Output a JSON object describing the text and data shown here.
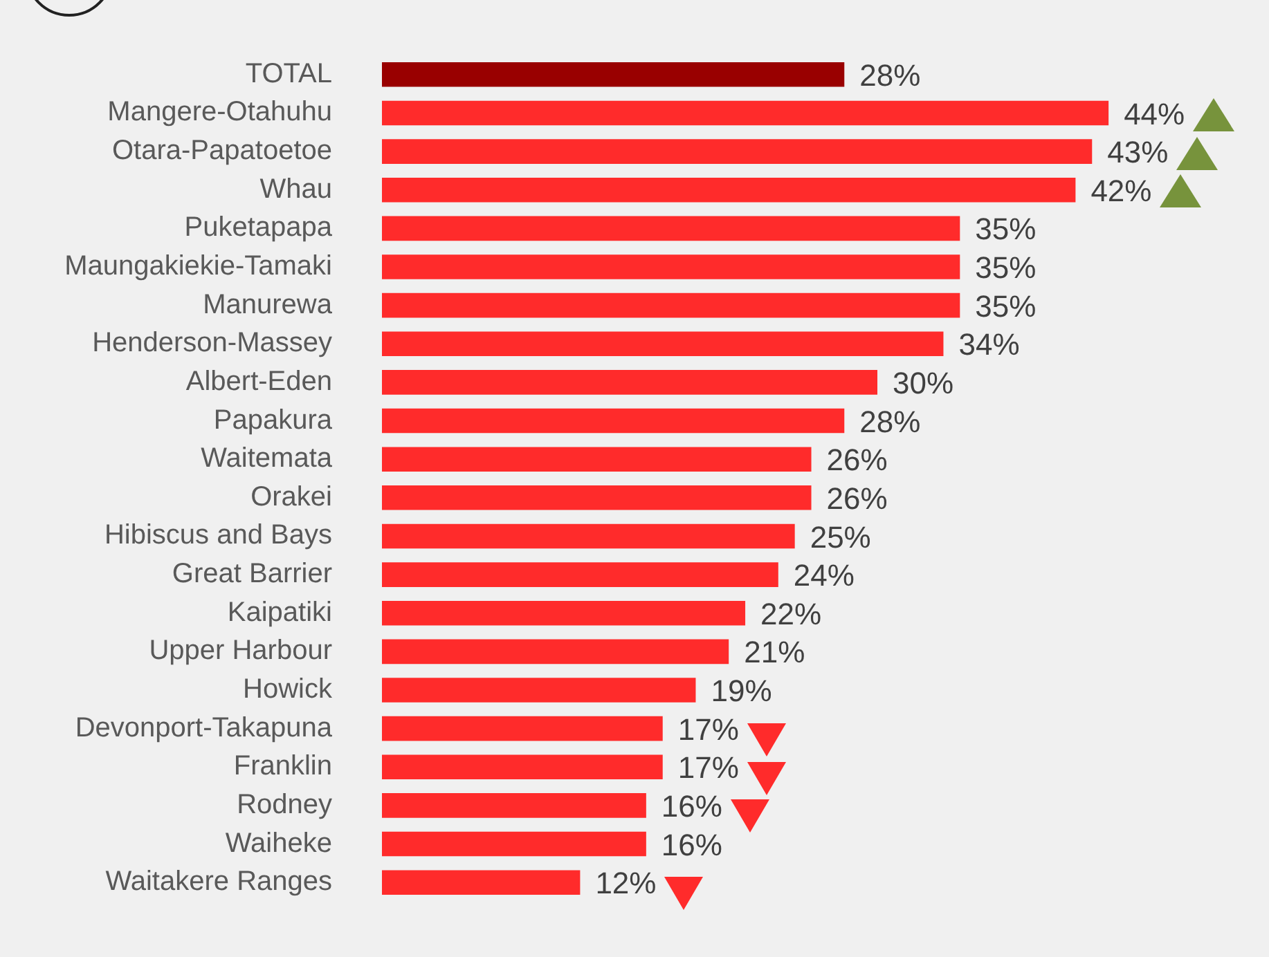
{
  "chart_data": {
    "type": "bar",
    "orientation": "horizontal",
    "categories": [
      "TOTAL",
      "Mangere-Otahuhu",
      "Otara-Papatoetoe",
      "Whau",
      "Puketapapa",
      "Maungakiekie-Tamaki",
      "Manurewa",
      "Henderson-Massey",
      "Albert-Eden",
      "Papakura",
      "Waitemata",
      "Orakei",
      "Hibiscus and Bays",
      "Great Barrier",
      "Kaipatiki",
      "Upper Harbour",
      "Howick",
      "Devonport-Takapuna",
      "Franklin",
      "Rodney",
      "Waiheke",
      "Waitakere Ranges"
    ],
    "values": [
      28,
      44,
      43,
      42,
      35,
      35,
      35,
      34,
      30,
      28,
      26,
      26,
      25,
      24,
      22,
      21,
      19,
      17,
      17,
      16,
      16,
      12
    ],
    "value_labels": [
      "28%",
      "44%",
      "43%",
      "42%",
      "35%",
      "35%",
      "35%",
      "34%",
      "30%",
      "28%",
      "26%",
      "26%",
      "25%",
      "24%",
      "22%",
      "21%",
      "19%",
      "17%",
      "17%",
      "16%",
      "16%",
      "12%"
    ],
    "colors": [
      "#990000",
      "#ff2b2b",
      "#ff2b2b",
      "#ff2b2b",
      "#ff2b2b",
      "#ff2b2b",
      "#ff2b2b",
      "#ff2b2b",
      "#ff2b2b",
      "#ff2b2b",
      "#ff2b2b",
      "#ff2b2b",
      "#ff2b2b",
      "#ff2b2b",
      "#ff2b2b",
      "#ff2b2b",
      "#ff2b2b",
      "#ff2b2b",
      "#ff2b2b",
      "#ff2b2b",
      "#ff2b2b",
      "#ff2b2b"
    ],
    "grid": false,
    "tick_labels": "y"
  }
}
